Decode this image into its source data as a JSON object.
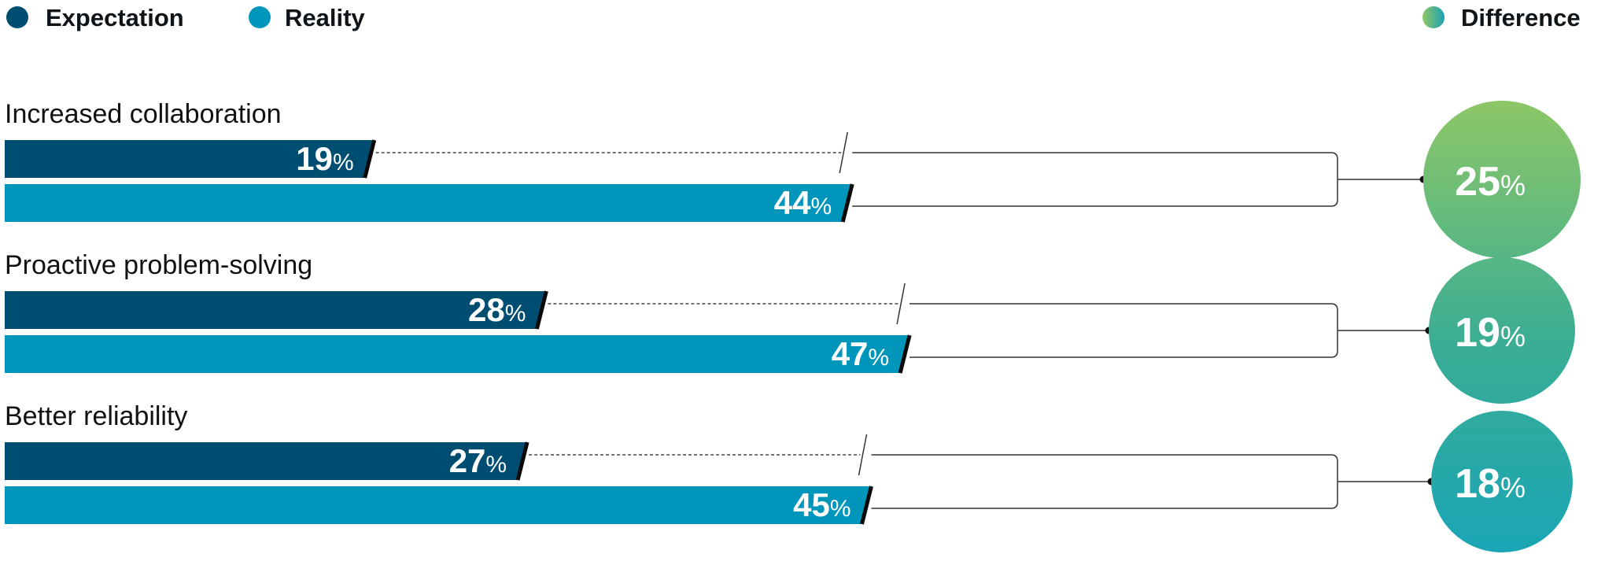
{
  "chart_data": {
    "type": "bar",
    "orientation": "horizontal",
    "legend": {
      "placement": "top",
      "items": [
        {
          "name": "Expectation",
          "color": "#004d72"
        },
        {
          "name": "Reality",
          "color": "#0096bb"
        },
        {
          "name": "Difference",
          "color_from": "#8fc765",
          "color_to": "#1aa1b4"
        }
      ]
    },
    "categories": [
      "Increased collaboration",
      "Proactive problem-solving",
      "Better reliability"
    ],
    "series": [
      {
        "name": "Expectation",
        "values": [
          19,
          28,
          27
        ],
        "color": "#004d72"
      },
      {
        "name": "Reality",
        "values": [
          44,
          47,
          45
        ],
        "color": "#0096bb"
      }
    ],
    "difference": {
      "name": "Difference",
      "values": [
        25,
        19,
        18
      ]
    },
    "unit": "%",
    "gradient_colors": {
      "top": "#92c864",
      "bottom": "#1aa5b6"
    }
  }
}
